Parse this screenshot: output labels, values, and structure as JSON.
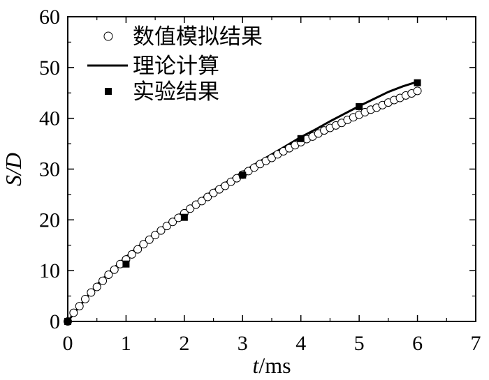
{
  "chart_data": {
    "type": "line",
    "title": "",
    "xlabel": "t/ms",
    "xlabel_var": "t",
    "xlabel_unit": "/ms",
    "ylabel": "S/D",
    "xlim": [
      0,
      7
    ],
    "ylim": [
      0,
      60
    ],
    "xticks": [
      0,
      1,
      2,
      3,
      4,
      5,
      6,
      7
    ],
    "yticks": [
      0,
      10,
      20,
      30,
      40,
      50,
      60
    ],
    "grid": false,
    "legend_position": "top-left",
    "series": [
      {
        "name": "数值模拟结果",
        "style": "hollow-circle",
        "color": "#000000",
        "x": [
          0,
          0.1,
          0.2,
          0.3,
          0.4,
          0.5,
          0.6,
          0.7,
          0.8,
          0.9,
          1.0,
          1.1,
          1.2,
          1.3,
          1.4,
          1.5,
          1.6,
          1.7,
          1.8,
          1.9,
          2.0,
          2.1,
          2.2,
          2.3,
          2.4,
          2.5,
          2.6,
          2.7,
          2.8,
          2.9,
          3.0,
          3.1,
          3.2,
          3.3,
          3.4,
          3.5,
          3.6,
          3.7,
          3.8,
          3.9,
          4.0,
          4.1,
          4.2,
          4.3,
          4.4,
          4.5,
          4.6,
          4.7,
          4.8,
          4.9,
          5.0,
          5.1,
          5.2,
          5.3,
          5.4,
          5.5,
          5.6,
          5.7,
          5.8,
          5.9,
          6.0
        ],
        "y": [
          0,
          1.7,
          3.0,
          4.4,
          5.7,
          6.8,
          8.0,
          9.2,
          10.2,
          11.3,
          12.2,
          13.2,
          14.2,
          15.2,
          16.1,
          17.0,
          17.9,
          18.8,
          19.6,
          20.4,
          21.3,
          22.2,
          23.0,
          23.7,
          24.5,
          25.3,
          26.0,
          26.7,
          27.5,
          28.2,
          28.9,
          29.6,
          30.3,
          31.0,
          31.6,
          32.2,
          32.9,
          33.5,
          34.1,
          34.7,
          35.3,
          35.9,
          36.4,
          37.0,
          37.6,
          38.1,
          38.6,
          39.1,
          39.7,
          40.2,
          40.7,
          41.2,
          41.7,
          42.1,
          42.6,
          43.1,
          43.6,
          44.0,
          44.5,
          44.9,
          45.4
        ]
      },
      {
        "name": "理论计算",
        "style": "solid-line",
        "color": "#000000",
        "x": [
          0,
          0.25,
          0.5,
          0.75,
          1.0,
          1.25,
          1.5,
          1.75,
          2.0,
          2.25,
          2.5,
          2.75,
          3.0,
          3.25,
          3.5,
          3.75,
          4.0,
          4.25,
          4.5,
          4.75,
          5.0,
          5.25,
          5.5,
          5.75,
          6.0
        ],
        "y": [
          0,
          3.7,
          7.2,
          10.1,
          12.7,
          15.1,
          17.4,
          19.6,
          21.7,
          23.8,
          25.8,
          27.6,
          29.4,
          31.2,
          32.9,
          34.6,
          36.3,
          37.8,
          39.4,
          40.9,
          42.4,
          43.8,
          45.2,
          46.3,
          47.2
        ]
      },
      {
        "name": "实验结果",
        "style": "filled-square",
        "color": "#000000",
        "x": [
          0,
          1,
          2,
          3,
          4,
          5,
          6
        ],
        "y": [
          0,
          11.3,
          20.5,
          28.8,
          36.0,
          42.3,
          47.0
        ]
      }
    ]
  }
}
